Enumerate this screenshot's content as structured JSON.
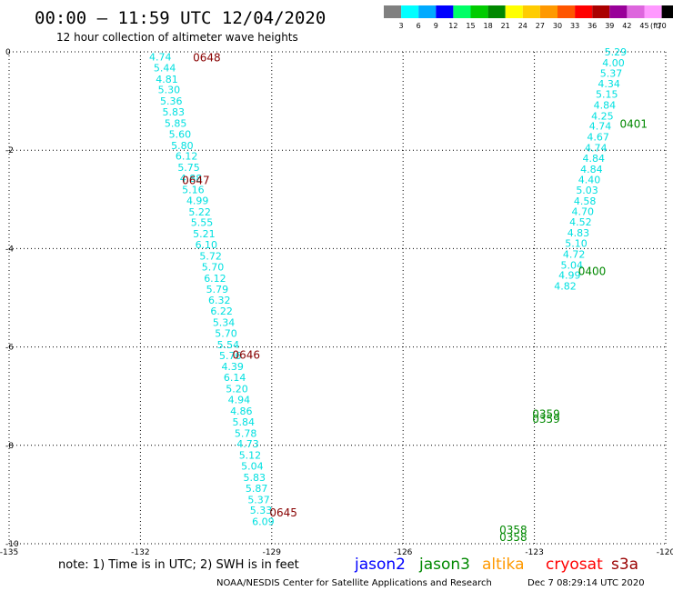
{
  "header": {
    "title": "00:00 – 11:59 UTC 12/04/2020",
    "subtitle": "12 hour collection of altimeter wave heights"
  },
  "legend_scale": {
    "labels": [
      "3",
      "6",
      "9",
      "12",
      "15",
      "18",
      "21",
      "24",
      "27",
      "30",
      "33",
      "36",
      "39",
      "42",
      "45",
      "70"
    ],
    "colors": [
      "#808080",
      "#00ffff",
      "#00aaff",
      "#0000ff",
      "#00ff66",
      "#00cc00",
      "#008800",
      "#ffff00",
      "#ffcc00",
      "#ff9900",
      "#ff5500",
      "#ff0000",
      "#aa0000",
      "#990099",
      "#dd66dd",
      "#ff99ff",
      "#000000"
    ],
    "unit": "(ft)"
  },
  "footer": {
    "note": "note: 1) Time is in UTC; 2) SWH is in feet",
    "satellites": [
      {
        "name": "jason2",
        "color": "#0000ff"
      },
      {
        "name": "jason3",
        "color": "#008800"
      },
      {
        "name": "altika",
        "color": "#ff9900"
      },
      {
        "name": "cryosat",
        "color": "#ff0000"
      },
      {
        "name": "s3a",
        "color": "#990000"
      }
    ],
    "credit": "NOAA/NESDIS Center for Satellite Applications and Research",
    "timestamp": "Dec  7 08:29:14 UTC 2020"
  },
  "chart_data": {
    "type": "scatter",
    "title": "00:00 – 11:59 UTC 12/04/2020",
    "subtitle": "12 hour collection of altimeter wave heights",
    "xlim": [
      -135,
      -120
    ],
    "ylim": [
      -10,
      0
    ],
    "xticks": [
      "-135",
      "-132",
      "-129",
      "-126",
      "-123",
      "-120"
    ],
    "yticks": [
      "0",
      "-2",
      "-4",
      "-6",
      "-8",
      "-10"
    ],
    "grid": true,
    "series": [
      {
        "name": "s3a",
        "color": "#00e0e0",
        "points": [
          {
            "lon": -131.8,
            "lat": -0.1,
            "swh": "4.74"
          },
          {
            "lon": -131.7,
            "lat": -0.32,
            "swh": "5.44"
          },
          {
            "lon": -131.65,
            "lat": -0.55,
            "swh": "4.81"
          },
          {
            "lon": -131.6,
            "lat": -0.77,
            "swh": "5.30"
          },
          {
            "lon": -131.55,
            "lat": -1.0,
            "swh": "5.36"
          },
          {
            "lon": -131.5,
            "lat": -1.22,
            "swh": "5.83"
          },
          {
            "lon": -131.45,
            "lat": -1.45,
            "swh": "5.85"
          },
          {
            "lon": -131.35,
            "lat": -1.67,
            "swh": "5.60"
          },
          {
            "lon": -131.3,
            "lat": -1.9,
            "swh": "5.80"
          },
          {
            "lon": -131.2,
            "lat": -2.12,
            "swh": "6.12"
          },
          {
            "lon": -131.15,
            "lat": -2.35,
            "swh": "5.75"
          },
          {
            "lon": -131.1,
            "lat": -2.57,
            "swh": "4.88"
          },
          {
            "lon": -131.05,
            "lat": -2.8,
            "swh": "5.16"
          },
          {
            "lon": -130.95,
            "lat": -3.02,
            "swh": "4.99"
          },
          {
            "lon": -130.9,
            "lat": -3.25,
            "swh": "5.22"
          },
          {
            "lon": -130.85,
            "lat": -3.47,
            "swh": "5.55"
          },
          {
            "lon": -130.8,
            "lat": -3.7,
            "swh": "5.21"
          },
          {
            "lon": -130.75,
            "lat": -3.92,
            "swh": "6.10"
          },
          {
            "lon": -130.65,
            "lat": -4.15,
            "swh": "5.72"
          },
          {
            "lon": -130.6,
            "lat": -4.37,
            "swh": "5.70"
          },
          {
            "lon": -130.55,
            "lat": -4.6,
            "swh": "6.12"
          },
          {
            "lon": -130.5,
            "lat": -4.82,
            "swh": "5.79"
          },
          {
            "lon": -130.45,
            "lat": -5.05,
            "swh": "6.32"
          },
          {
            "lon": -130.4,
            "lat": -5.27,
            "swh": "6.22"
          },
          {
            "lon": -130.35,
            "lat": -5.5,
            "swh": "5.34"
          },
          {
            "lon": -130.3,
            "lat": -5.72,
            "swh": "5.70"
          },
          {
            "lon": -130.25,
            "lat": -5.95,
            "swh": "5.54"
          },
          {
            "lon": -130.2,
            "lat": -6.17,
            "swh": "5.76"
          },
          {
            "lon": -130.15,
            "lat": -6.4,
            "swh": "4.39"
          },
          {
            "lon": -130.1,
            "lat": -6.62,
            "swh": "6.14"
          },
          {
            "lon": -130.05,
            "lat": -6.85,
            "swh": "5.20"
          },
          {
            "lon": -130.0,
            "lat": -7.07,
            "swh": "4.94"
          },
          {
            "lon": -129.95,
            "lat": -7.3,
            "swh": "4.86"
          },
          {
            "lon": -129.9,
            "lat": -7.52,
            "swh": "5.84"
          },
          {
            "lon": -129.85,
            "lat": -7.75,
            "swh": "5.78"
          },
          {
            "lon": -129.8,
            "lat": -7.97,
            "swh": "4.73"
          },
          {
            "lon": -129.75,
            "lat": -8.2,
            "swh": "5.12"
          },
          {
            "lon": -129.7,
            "lat": -8.42,
            "swh": "5.04"
          },
          {
            "lon": -129.65,
            "lat": -8.65,
            "swh": "5.83"
          },
          {
            "lon": -129.6,
            "lat": -8.87,
            "swh": "5.87"
          },
          {
            "lon": -129.55,
            "lat": -9.1,
            "swh": "5.37"
          },
          {
            "lon": -129.5,
            "lat": -9.32,
            "swh": "5.33"
          },
          {
            "lon": -129.45,
            "lat": -9.55,
            "swh": "6.09"
          }
        ],
        "time_labels": [
          {
            "lon": -130.8,
            "lat": -0.1,
            "text": "0648"
          },
          {
            "lon": -131.05,
            "lat": -2.6,
            "text": "0647"
          },
          {
            "lon": -129.9,
            "lat": -6.15,
            "text": "0646"
          },
          {
            "lon": -129.05,
            "lat": -9.35,
            "text": "0645"
          }
        ]
      },
      {
        "name": "jason3",
        "color": "#00e0e0",
        "points": [
          {
            "lon": -121.4,
            "lat": -0.0,
            "swh": "5.29"
          },
          {
            "lon": -121.45,
            "lat": -0.22,
            "swh": "4.00"
          },
          {
            "lon": -121.5,
            "lat": -0.43,
            "swh": "5.37"
          },
          {
            "lon": -121.55,
            "lat": -0.65,
            "swh": "4.34"
          },
          {
            "lon": -121.6,
            "lat": -0.86,
            "swh": "5.15"
          },
          {
            "lon": -121.65,
            "lat": -1.08,
            "swh": "4.84"
          },
          {
            "lon": -121.7,
            "lat": -1.3,
            "swh": "4.25"
          },
          {
            "lon": -121.75,
            "lat": -1.51,
            "swh": "4.74"
          },
          {
            "lon": -121.8,
            "lat": -1.73,
            "swh": "4.67"
          },
          {
            "lon": -121.85,
            "lat": -1.95,
            "swh": "4.74"
          },
          {
            "lon": -121.9,
            "lat": -2.16,
            "swh": "4.84"
          },
          {
            "lon": -121.95,
            "lat": -2.38,
            "swh": "4.84"
          },
          {
            "lon": -122.0,
            "lat": -2.6,
            "swh": "4.40"
          },
          {
            "lon": -122.05,
            "lat": -2.81,
            "swh": "5.03"
          },
          {
            "lon": -122.1,
            "lat": -3.03,
            "swh": "4.58"
          },
          {
            "lon": -122.15,
            "lat": -3.24,
            "swh": "4.70"
          },
          {
            "lon": -122.2,
            "lat": -3.46,
            "swh": "4.52"
          },
          {
            "lon": -122.25,
            "lat": -3.68,
            "swh": "4.83"
          },
          {
            "lon": -122.3,
            "lat": -3.89,
            "swh": "5.10"
          },
          {
            "lon": -122.35,
            "lat": -4.11,
            "swh": "4.72"
          },
          {
            "lon": -122.4,
            "lat": -4.33,
            "swh": "5.04"
          },
          {
            "lon": -122.45,
            "lat": -4.54,
            "swh": "4.99"
          },
          {
            "lon": -122.55,
            "lat": -4.76,
            "swh": "4.82"
          }
        ],
        "time_labels": [
          {
            "lon": -121.05,
            "lat": -1.45,
            "text": "0401"
          },
          {
            "lon": -122.0,
            "lat": -4.45,
            "text": "0400"
          },
          {
            "lon": -123.05,
            "lat": -7.35,
            "text": "0359"
          },
          {
            "lon": -123.05,
            "lat": -7.45,
            "text": "0359"
          },
          {
            "lon": -123.8,
            "lat": -9.7,
            "text": "0358"
          },
          {
            "lon": -123.8,
            "lat": -9.85,
            "text": "0358"
          }
        ]
      }
    ]
  }
}
